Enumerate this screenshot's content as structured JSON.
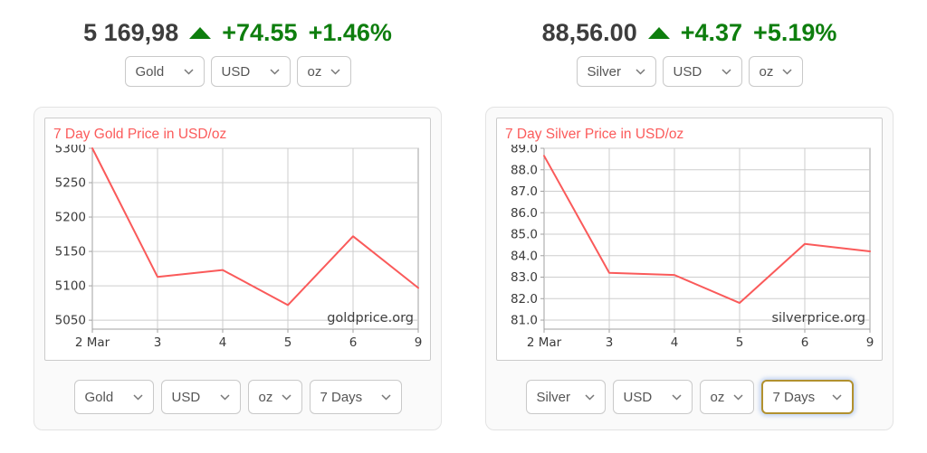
{
  "colors": {
    "accent_green": "#0e7e0e",
    "price_text": "#3d3d3d",
    "chart_red": "#fa5a5a",
    "title_red": "#fb5b5b",
    "grid_gray": "#cdcdcd",
    "plot_border": "#a0a0a0",
    "axis_text": "#3a3a3a",
    "watermark_gray": "#404040",
    "highlight_border_gold": "#b2912f"
  },
  "widgets": [
    {
      "metal": "Gold",
      "price": "5 169,98",
      "trend_icon": "triangle-up",
      "change_abs": "+74.55",
      "change_pct": "+1.46%",
      "selects_top": [
        {
          "value": "Gold"
        },
        {
          "value": "USD"
        },
        {
          "value": "oz"
        }
      ],
      "selects_bottom": [
        {
          "value": "Gold"
        },
        {
          "value": "USD"
        },
        {
          "value": "oz"
        },
        {
          "value": "7 Days",
          "highlighted": false
        }
      ]
    },
    {
      "metal": "Silver",
      "price": "88,56.00",
      "trend_icon": "triangle-up",
      "change_abs": "+4.37",
      "change_pct": "+5.19%",
      "selects_top": [
        {
          "value": "Silver"
        },
        {
          "value": "USD"
        },
        {
          "value": "oz"
        }
      ],
      "selects_bottom": [
        {
          "value": "Silver"
        },
        {
          "value": "USD"
        },
        {
          "value": "oz"
        },
        {
          "value": "7 Days",
          "highlighted": true
        }
      ]
    }
  ],
  "chart_data": [
    {
      "type": "line",
      "title": "7 Day Gold Price in USD/oz",
      "categories": [
        "2 Mar",
        "3",
        "4",
        "5",
        "6",
        "9"
      ],
      "values": [
        5300,
        5113,
        5123,
        5072,
        5172,
        5097
      ],
      "ytick_labels": [
        "5300",
        "5250",
        "5200",
        "5150",
        "5100",
        "5050"
      ],
      "ylim": [
        5037,
        5300
      ],
      "xlabel": "",
      "ylabel": "",
      "grid": true,
      "legend": "none",
      "line_color": "#fa5a5a",
      "watermark": "goldprice.org"
    },
    {
      "type": "line",
      "title": "7 Day Silver Price in USD/oz",
      "categories": [
        "2 Mar",
        "3",
        "4",
        "5",
        "6",
        "9"
      ],
      "values": [
        88.65,
        83.2,
        83.1,
        81.8,
        84.55,
        84.2
      ],
      "ytick_labels": [
        "89.0",
        "88.0",
        "87.0",
        "86.0",
        "85.0",
        "84.0",
        "83.0",
        "82.0",
        "81.0"
      ],
      "ylim": [
        80.58,
        89.0
      ],
      "xlabel": "",
      "ylabel": "",
      "grid": true,
      "legend": "none",
      "line_color": "#fa5a5a",
      "watermark": "silverprice.org"
    }
  ]
}
